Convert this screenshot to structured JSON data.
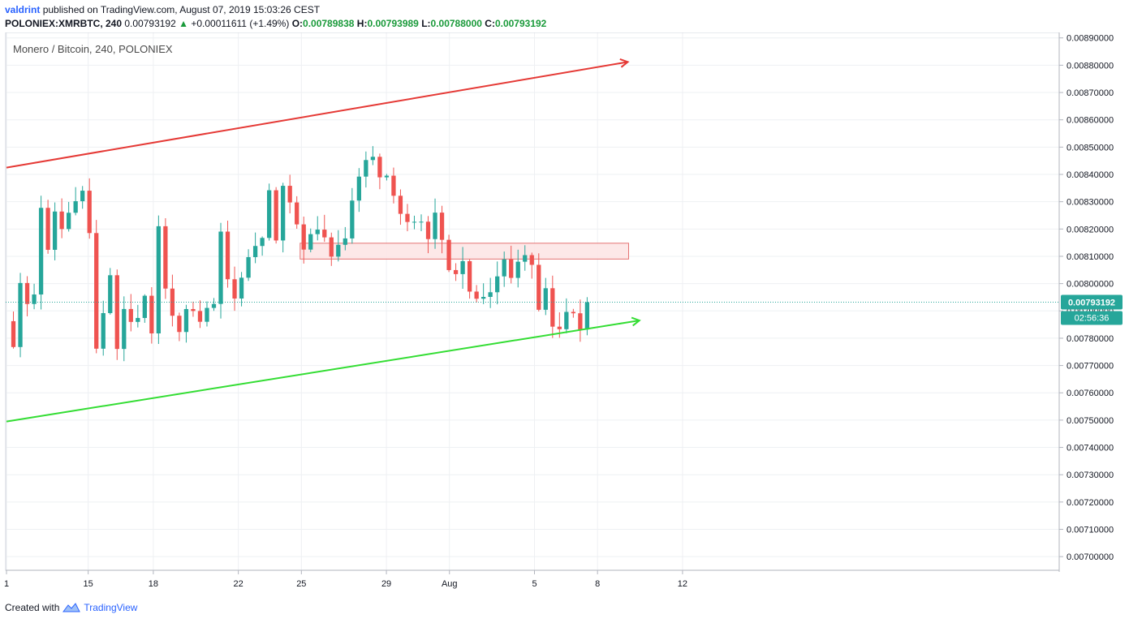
{
  "header": {
    "author": "valdrint",
    "published_text": "published on TradingView.com, August 07, 2019 15:03:26 CEST",
    "symbol": "POLONIEX:XMRBTC, 240",
    "last": "0.00793192",
    "change_arrow": "▲",
    "change": "+0.00011611 (+1.49%)",
    "o_label": "O:",
    "o_value": "0.00789838",
    "h_label": "H:",
    "h_value": "0.00793989",
    "l_label": "L:",
    "l_value": "0.00788000",
    "c_label": "C:",
    "c_value": "0.00793192"
  },
  "footer": {
    "created_with": "Created with",
    "brand": "TradingView"
  },
  "colors": {
    "up": "#26a69a",
    "down": "#ef5350",
    "resistance": "#e53935",
    "support": "#33dd33",
    "zone_fill": "#fde4e4",
    "zone_border": "#e57373",
    "price_badge": "#26a69a",
    "grid": "#eef0f3"
  },
  "chart_data": {
    "type": "candlestick",
    "title": "Monero / Bitcoin, 240, POLONIEX",
    "ylim": [
      0.00695,
      0.00892
    ],
    "xlim": [
      1,
      15.5
    ],
    "y_ticks": [
      "0.00890000",
      "0.00880000",
      "0.00870000",
      "0.00860000",
      "0.00850000",
      "0.00840000",
      "0.00830000",
      "0.00820000",
      "0.00810000",
      "0.00800000",
      "0.00790000",
      "0.00780000",
      "0.00770000",
      "0.00760000",
      "0.00750000",
      "0.00740000",
      "0.00730000",
      "0.00720000",
      "0.00710000",
      "0.00700000"
    ],
    "x_ticks": [
      {
        "label": "1",
        "x": 1
      },
      {
        "label": "15",
        "x": 2.97
      },
      {
        "label": "18",
        "x": 4.54
      },
      {
        "label": "22",
        "x": 6.59
      },
      {
        "label": "25",
        "x": 8.11
      },
      {
        "label": "29",
        "x": 10.16
      },
      {
        "label": "Aug",
        "x": 11.68
      },
      {
        "label": "5",
        "x": 13.73
      },
      {
        "label": "8",
        "x": 15.25
      },
      {
        "label": "12",
        "x": 17.3
      }
    ],
    "last_price_label": "0.00793192",
    "countdown_label": "02:56:36",
    "last_price": 0.00793192,
    "anchors": [
      {
        "x": 1.0,
        "c": 0.00785
      },
      {
        "x": 1.14,
        "c": 0.00775
      },
      {
        "x": 1.34,
        "c": 0.008
      },
      {
        "x": 1.62,
        "c": 0.0078
      },
      {
        "x": 1.78,
        "c": 0.0083
      },
      {
        "x": 2.0,
        "c": 0.00815
      },
      {
        "x": 2.2,
        "c": 0.00825
      },
      {
        "x": 2.4,
        "c": 0.00815
      },
      {
        "x": 2.58,
        "c": 0.0083
      },
      {
        "x": 2.78,
        "c": 0.00826
      },
      {
        "x": 2.9,
        "c": 0.00847
      },
      {
        "x": 3.02,
        "c": 0.0081
      },
      {
        "x": 3.08,
        "c": 0.00782
      },
      {
        "x": 3.26,
        "c": 0.00775
      },
      {
        "x": 3.46,
        "c": 0.00812
      },
      {
        "x": 3.66,
        "c": 0.00778
      },
      {
        "x": 3.86,
        "c": 0.0079
      },
      {
        "x": 4.1,
        "c": 0.00778
      },
      {
        "x": 4.32,
        "c": 0.008
      },
      {
        "x": 4.5,
        "c": 0.00782
      },
      {
        "x": 4.66,
        "c": 0.0082
      },
      {
        "x": 4.82,
        "c": 0.008
      },
      {
        "x": 5.0,
        "c": 0.0079
      },
      {
        "x": 5.2,
        "c": 0.00782
      },
      {
        "x": 5.4,
        "c": 0.0079
      },
      {
        "x": 5.6,
        "c": 0.00784
      },
      {
        "x": 5.8,
        "c": 0.00792
      },
      {
        "x": 6.0,
        "c": 0.0079
      },
      {
        "x": 6.2,
        "c": 0.00828
      },
      {
        "x": 6.32,
        "c": 0.00805
      },
      {
        "x": 6.52,
        "c": 0.00795
      },
      {
        "x": 6.7,
        "c": 0.00805
      },
      {
        "x": 6.9,
        "c": 0.00812
      },
      {
        "x": 7.1,
        "c": 0.00808
      },
      {
        "x": 7.3,
        "c": 0.00835
      },
      {
        "x": 7.5,
        "c": 0.00818
      },
      {
        "x": 7.64,
        "c": 0.00838
      },
      {
        "x": 7.8,
        "c": 0.00828
      },
      {
        "x": 7.96,
        "c": 0.00822
      },
      {
        "x": 8.1,
        "c": 0.00812
      },
      {
        "x": 8.3,
        "c": 0.00818
      },
      {
        "x": 8.5,
        "c": 0.00817
      },
      {
        "x": 8.7,
        "c": 0.00815
      },
      {
        "x": 8.9,
        "c": 0.00812
      },
      {
        "x": 9.1,
        "c": 0.00815
      },
      {
        "x": 9.28,
        "c": 0.00828
      },
      {
        "x": 9.4,
        "c": 0.0083
      },
      {
        "x": 9.5,
        "c": 0.0084
      },
      {
        "x": 9.66,
        "c": 0.00843
      },
      {
        "x": 9.76,
        "c": 0.00853
      },
      {
        "x": 9.84,
        "c": 0.00848
      },
      {
        "x": 9.94,
        "c": 0.00838
      },
      {
        "x": 10.1,
        "c": 0.00843
      },
      {
        "x": 10.3,
        "c": 0.00835
      },
      {
        "x": 10.5,
        "c": 0.00822
      },
      {
        "x": 10.66,
        "c": 0.00823
      },
      {
        "x": 10.86,
        "c": 0.00827
      },
      {
        "x": 11.04,
        "c": 0.00824
      },
      {
        "x": 11.2,
        "c": 0.00818
      },
      {
        "x": 11.36,
        "c": 0.00826
      },
      {
        "x": 11.5,
        "c": 0.0082
      },
      {
        "x": 11.62,
        "c": 0.0081
      },
      {
        "x": 11.76,
        "c": 0.008
      },
      {
        "x": 11.9,
        "c": 0.0081
      },
      {
        "x": 12.08,
        "c": 0.00808
      },
      {
        "x": 12.26,
        "c": 0.0079
      },
      {
        "x": 12.44,
        "c": 0.00795
      },
      {
        "x": 12.64,
        "c": 0.00796
      },
      {
        "x": 12.84,
        "c": 0.008
      },
      {
        "x": 13.0,
        "c": 0.00808
      },
      {
        "x": 13.16,
        "c": 0.008
      },
      {
        "x": 13.32,
        "c": 0.00812
      },
      {
        "x": 13.5,
        "c": 0.0081
      },
      {
        "x": 13.66,
        "c": 0.00808
      },
      {
        "x": 13.8,
        "c": 0.00793
      },
      {
        "x": 13.9,
        "c": 0.00785
      },
      {
        "x": 14.0,
        "c": 0.00797
      },
      {
        "x": 14.16,
        "c": 0.00786
      },
      {
        "x": 14.36,
        "c": 0.00783
      },
      {
        "x": 14.5,
        "c": 0.00786
      },
      {
        "x": 14.66,
        "c": 0.00792
      },
      {
        "x": 14.8,
        "c": 0.00782
      },
      {
        "x": 14.96,
        "c": 0.00787
      },
      {
        "x": 15.0,
        "c": 0.00793
      }
    ],
    "annotations": {
      "resistance_line": {
        "points": [
          [
            1.0,
            0.008425
          ],
          [
            15.98,
            0.008812
          ]
        ],
        "arrow": "end"
      },
      "support_line": {
        "points": [
          [
            1.0,
            0.007495
          ],
          [
            16.26,
            0.007865
          ]
        ],
        "arrow": "end"
      },
      "zone": {
        "x": [
          8.08,
          16.0
        ],
        "y": [
          0.00809,
          0.008148
        ]
      }
    }
  }
}
